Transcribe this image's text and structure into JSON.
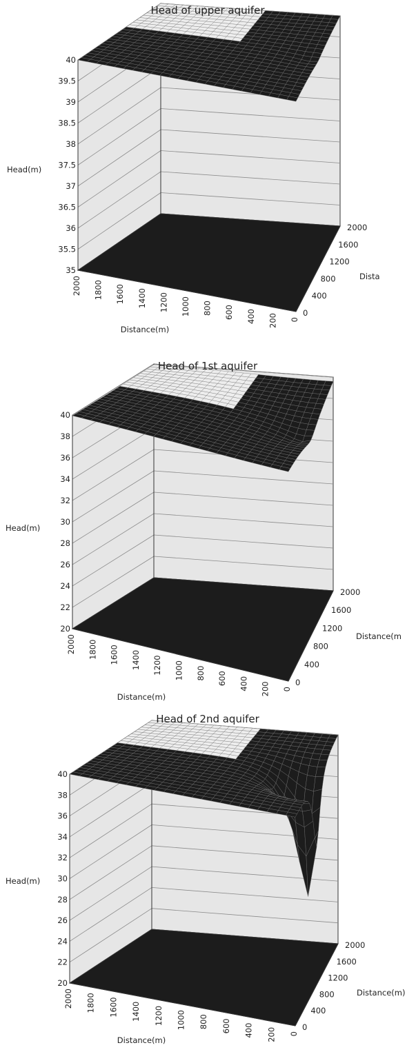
{
  "chart_data": [
    {
      "type": "surface3d",
      "title": "Head of upper aquifer",
      "zlabel": "Head(m)",
      "xlabel": "Distance(m)",
      "ylabel": "Dista",
      "zlim": [
        35,
        40
      ],
      "z_ticks": [
        "35",
        "35.5",
        "36",
        "36.5",
        "37",
        "37.5",
        "38",
        "38.5",
        "39",
        "39.5",
        "40"
      ],
      "x_ticks": [
        "2000",
        "1800",
        "1600",
        "1400",
        "1200",
        "1000",
        "800",
        "600",
        "400",
        "200",
        "0"
      ],
      "y_ticks": [
        "0",
        "400",
        "800",
        "1200",
        "1600",
        "2000"
      ],
      "surface": {
        "base_head": 40.0,
        "min_head": 39.9,
        "drawdown_shape": "flat"
      },
      "floor_value": 35
    },
    {
      "type": "surface3d",
      "title": "Head of 1st aquifer",
      "zlabel": "Head(m)",
      "xlabel": "Distance(m)",
      "ylabel": "Distance(m",
      "zlim": [
        20,
        40
      ],
      "z_ticks": [
        "20",
        "22",
        "24",
        "26",
        "28",
        "30",
        "32",
        "34",
        "36",
        "38",
        "40"
      ],
      "x_ticks": [
        "2000",
        "1800",
        "1600",
        "1400",
        "1200",
        "1000",
        "800",
        "600",
        "400",
        "200",
        "0"
      ],
      "y_ticks": [
        "0",
        "400",
        "800",
        "1200",
        "1600",
        "2000"
      ],
      "surface": {
        "base_head": 40.0,
        "min_head": 38.0,
        "drawdown_shape": "gentle"
      },
      "floor_value": 20
    },
    {
      "type": "surface3d",
      "title": "Head of 2nd aquifer",
      "zlabel": "Head(m)",
      "xlabel": "Distance(m)",
      "ylabel": "Distance(m)",
      "zlim": [
        20,
        40
      ],
      "z_ticks": [
        "20",
        "22",
        "24",
        "26",
        "28",
        "30",
        "32",
        "34",
        "36",
        "38",
        "40"
      ],
      "x_ticks": [
        "2000",
        "1800",
        "1600",
        "1400",
        "1200",
        "1000",
        "800",
        "600",
        "400",
        "200",
        "0"
      ],
      "y_ticks": [
        "0",
        "400",
        "800",
        "1200",
        "1600",
        "2000"
      ],
      "surface": {
        "base_head": 40.0,
        "min_head": 27.0,
        "drawdown_shape": "cone"
      },
      "floor_value": 20
    }
  ],
  "colors": {
    "surface_dark": "#1c1c1c",
    "surface_light": "#ededed",
    "wall_fill": "#e6e6e6",
    "grid": "#8a8a8a",
    "axis": "#333333"
  }
}
